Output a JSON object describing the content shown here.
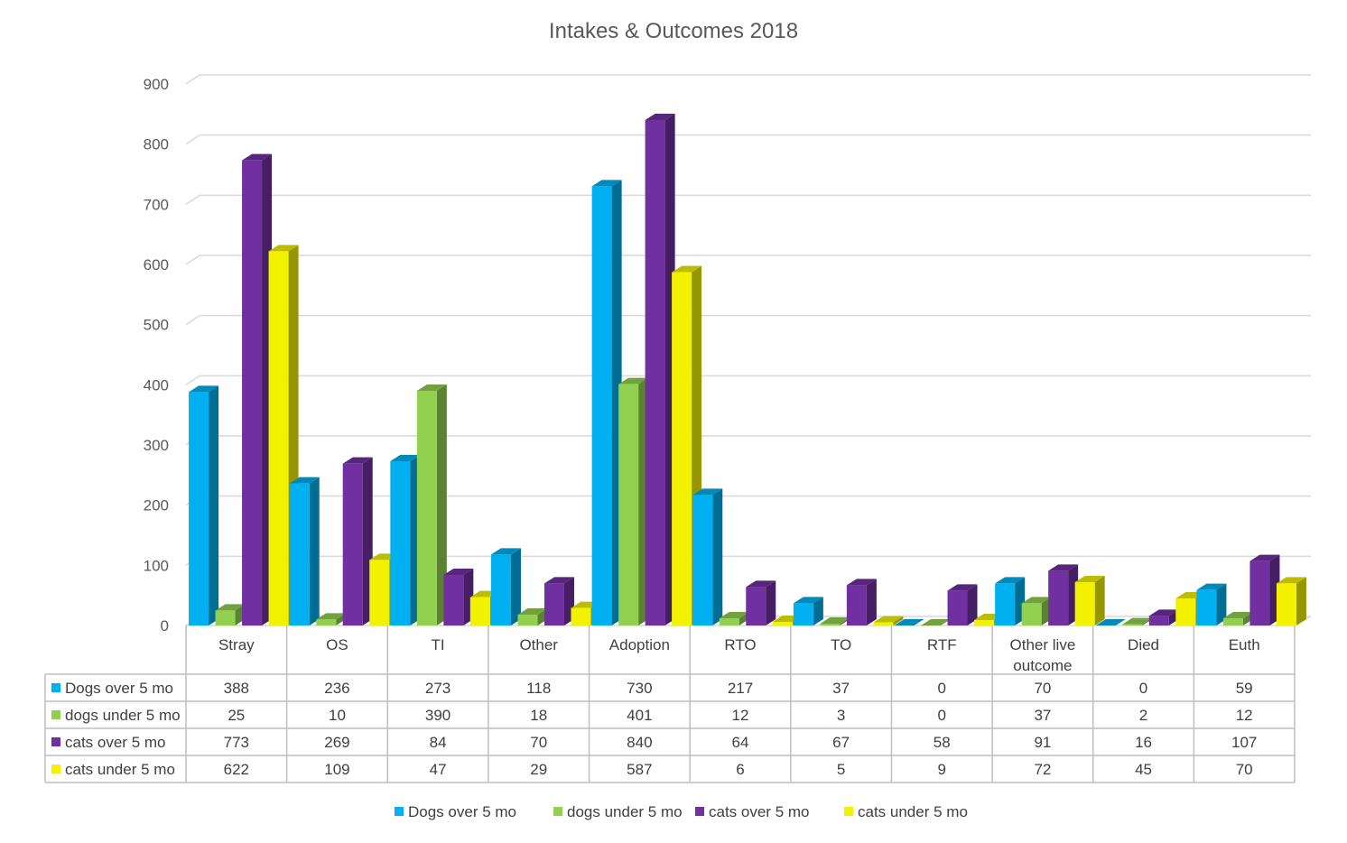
{
  "chart_data": {
    "type": "bar",
    "title": "Intakes & Outcomes 2018",
    "categories": [
      "Stray",
      "OS",
      "TI",
      "Other",
      "Adoption",
      "RTO",
      "TO",
      "RTF",
      "Other live outcome",
      "Died",
      "Euth"
    ],
    "series": [
      {
        "name": "Dogs over 5 mo",
        "color": "#00B0F0",
        "values": [
          388,
          236,
          273,
          118,
          730,
          217,
          37,
          0,
          70,
          0,
          59
        ]
      },
      {
        "name": "dogs under 5 mo",
        "color": "#92D050",
        "values": [
          25,
          10,
          390,
          18,
          401,
          12,
          3,
          0,
          37,
          2,
          12
        ]
      },
      {
        "name": "cats over 5 mo",
        "color": "#7030A0",
        "values": [
          773,
          269,
          84,
          70,
          840,
          64,
          67,
          58,
          91,
          16,
          107
        ]
      },
      {
        "name": "cats under 5 mo",
        "color": "#F2F200",
        "values": [
          622,
          109,
          47,
          29,
          587,
          6,
          5,
          9,
          72,
          45,
          70
        ]
      }
    ],
    "ylim": [
      0,
      900
    ],
    "yticks": [
      0,
      100,
      200,
      300,
      400,
      500,
      600,
      700,
      800,
      900
    ],
    "grid": true,
    "style": "3d-clustered-column",
    "data_table": true,
    "legend_position": "bottom"
  }
}
